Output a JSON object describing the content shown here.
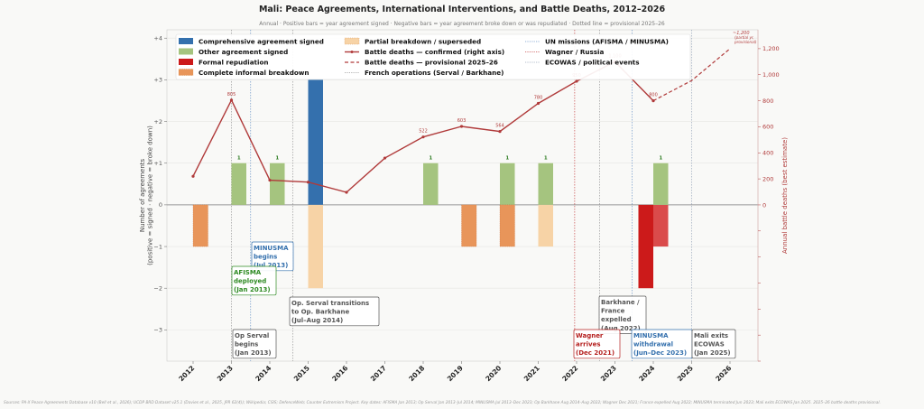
{
  "chart_data": {
    "type": "bar",
    "title": "Mali: Peace Agreements, International Interventions, and Battle Deaths, 2012–2026",
    "subtitle": "Annual  ·  Positive bars = year agreement signed  ·  Negative bars = year agreement broke down or was repudiated  ·  Dotted line = provisional 2025–26",
    "ylabel": "Number of agreements\n(positive = signed · negative = broke down)",
    "ylabel_lines": [
      "Number of agreements",
      "(positive = signed · negative = broke down)"
    ],
    "y2label": "Annual battle deaths (best estimate)",
    "ylim": [
      -3.75,
      4.2
    ],
    "y2lim": [
      -1200,
      1345
    ],
    "yticks": [
      -3,
      -2,
      -1,
      0,
      1,
      2,
      3,
      4
    ],
    "ytick_labels": [
      "−3",
      "−2",
      "−1",
      "0",
      "+1",
      "+2",
      "+3",
      "+4"
    ],
    "y2ticks": [
      0,
      200,
      400,
      600,
      800,
      1000,
      1200
    ],
    "y2tick_labels": [
      "0",
      "200",
      "400",
      "600",
      "800",
      "1,000",
      "1,200"
    ],
    "categories": [
      "2012",
      "2013",
      "2014",
      "2015",
      "2016",
      "2017",
      "2018",
      "2019",
      "2020",
      "2021",
      "2022",
      "2023",
      "2024",
      "2025",
      "2026"
    ],
    "grid": true,
    "legend_placement": "top",
    "colors": {
      "comprehensive": "#3470ad",
      "other": "#a5c47f",
      "formal": "#cc1a1a",
      "formal_light": "#da4b4b",
      "complete": "#e8955a",
      "partial": "#f7d3a6",
      "deaths": "#b03a3a",
      "un": "#6f97c9",
      "wagner": "#c84a4a",
      "french": "#999999",
      "ecowas": "#9aa8bb"
    },
    "legend": [
      {
        "key": "comprehensive",
        "label": "Comprehensive agreement signed",
        "kind": "patch"
      },
      {
        "key": "other",
        "label": "Other agreement signed",
        "kind": "patch"
      },
      {
        "key": "formal",
        "label": "Formal repudiation",
        "kind": "patch"
      },
      {
        "key": "complete",
        "label": "Complete informal breakdown",
        "kind": "patch"
      },
      {
        "key": "partial",
        "label": "Partial breakdown / superseded",
        "kind": "patch"
      },
      {
        "key": "deaths",
        "label": "Battle deaths — confirmed (right axis)",
        "kind": "line"
      },
      {
        "key": "deaths",
        "label": "Battle deaths — provisional 2025–26",
        "kind": "dash"
      },
      {
        "key": "french",
        "label": "French operations (Serval / Barkhane)",
        "kind": "vline"
      },
      {
        "key": "un",
        "label": "UN missions (AFISMA / MINUSMA)",
        "kind": "vline"
      },
      {
        "key": "wagner",
        "label": "Wagner / Russia",
        "kind": "vline"
      },
      {
        "key": "ecowas",
        "label": "ECOWAS / political events",
        "kind": "vline"
      }
    ],
    "bars": [
      {
        "year": 2012,
        "type": "complete",
        "value": -1
      },
      {
        "year": 2013,
        "type": "other",
        "value": 1,
        "label": "1"
      },
      {
        "year": 2014,
        "type": "other",
        "value": 1,
        "label": "1"
      },
      {
        "year": 2015,
        "type": "comprehensive",
        "value": 3
      },
      {
        "year": 2015,
        "type": "partial",
        "value": -2
      },
      {
        "year": 2018,
        "type": "other",
        "value": 1,
        "label": "1"
      },
      {
        "year": 2019,
        "type": "complete",
        "value": -1
      },
      {
        "year": 2020,
        "type": "other",
        "value": 1,
        "label": "1"
      },
      {
        "year": 2020,
        "type": "complete",
        "value": -1
      },
      {
        "year": 2021,
        "type": "other",
        "value": 1,
        "label": "1"
      },
      {
        "year": 2021,
        "type": "partial",
        "value": -1
      },
      {
        "year": 2024,
        "type": "formal",
        "value": -2
      },
      {
        "year": 2024,
        "type": "formal_light",
        "value": -1
      },
      {
        "year": 2024,
        "type": "other",
        "value": 1,
        "label": "1"
      }
    ],
    "deaths_confirmed": [
      {
        "year": 2012,
        "value": 220
      },
      {
        "year": 2013,
        "value": 805,
        "label": "805"
      },
      {
        "year": 2014,
        "value": 190
      },
      {
        "year": 2015,
        "value": 175
      },
      {
        "year": 2016,
        "value": 97
      },
      {
        "year": 2017,
        "value": 360
      },
      {
        "year": 2018,
        "value": 522,
        "label": "522"
      },
      {
        "year": 2019,
        "value": 603,
        "label": "603"
      },
      {
        "year": 2020,
        "value": 564,
        "label": "564"
      },
      {
        "year": 2021,
        "value": 780,
        "label": "780"
      },
      {
        "year": 2022,
        "value": 950,
        "label": "950"
      },
      {
        "year": 2023,
        "value": 1100,
        "label": "1,100"
      },
      {
        "year": 2024,
        "value": 800,
        "label": "800"
      }
    ],
    "deaths_provisional": [
      {
        "year": 2024,
        "value": 800
      },
      {
        "year": 2025,
        "value": 955
      },
      {
        "year": 2026,
        "value": 1200
      }
    ],
    "provisional_note": [
      "~1,200",
      "(partial yr,",
      "provisional)"
    ],
    "events": [
      {
        "date": 2013.0,
        "kind": "french"
      },
      {
        "date": 2013.5,
        "kind": "un"
      },
      {
        "date": 2014.6,
        "kind": "french"
      },
      {
        "date": 2021.95,
        "kind": "wagner"
      },
      {
        "date": 2022.6,
        "kind": "french"
      },
      {
        "date": 2023.45,
        "kind": "un"
      },
      {
        "date": 2025.0,
        "kind": "ecowas"
      }
    ],
    "annotations": [
      {
        "kind": "un",
        "lines": [
          "MINUSMA",
          "begins",
          "(Jul 2013)"
        ]
      },
      {
        "kind": "afisma",
        "lines": [
          "AFISMA",
          "deployed",
          "(Jan 2013)"
        ]
      },
      {
        "kind": "french",
        "lines": [
          "Op. Serval transitions",
          "to Op. Barkhane",
          "(Jul–Aug 2014)"
        ]
      },
      {
        "kind": "french",
        "lines": [
          "Op Serval",
          "begins",
          "(Jan 2013)"
        ]
      },
      {
        "kind": "french",
        "lines": [
          "Barkhane /",
          "France",
          "expelled",
          "(Aug 2022)"
        ]
      },
      {
        "kind": "wagner",
        "lines": [
          "Wagner",
          "arrives",
          "(Dec 2021)"
        ]
      },
      {
        "kind": "un",
        "lines": [
          "MINUSMA",
          "withdrawal",
          "(Jun–Dec 2023)"
        ]
      },
      {
        "kind": "french",
        "lines": [
          "Mali exits",
          "ECOWAS",
          "(Jan 2025)"
        ]
      }
    ]
  },
  "source": "Sources: PA-X Peace Agreements Database v10 (Bell et al., 2026); UCDP BRD Dataset v25.1 (Davies et al., 2025, JPR 62(4)); Wikipedia; CSIS; DefenceWeb; Counter Extremism Project. Key dates: AFISMA Jan 2013; Op Serval Jan 2013–Jul 2014; MINUSMA Jul 2013–Dec 2023; Op Barkhane Aug 2014–Aug 2022; Wagner Dec 2021; France expelled Aug 2022; MINUSMA terminated Jun 2023; Mali exits ECOWAS Jan 2025. 2025–26 battle deaths provisional."
}
